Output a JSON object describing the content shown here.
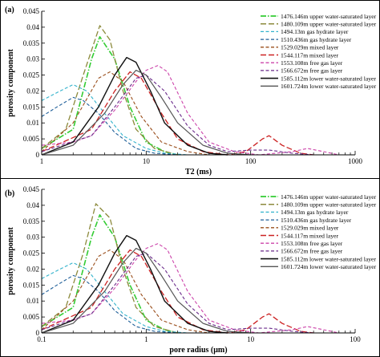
{
  "chart_data": [
    {
      "type": "line",
      "panel_tag": "(a)",
      "xlabel": "T2 (ms)",
      "ylabel": "porosity component",
      "xscale": "log",
      "xlim": [
        1,
        1000
      ],
      "ylim": [
        0,
        0.045
      ],
      "xticks": [
        "1",
        "10",
        "100",
        "1000"
      ],
      "yticks": [
        "0",
        "0.005",
        "0.01",
        "0.015",
        "0.02",
        "0.025",
        "0.03",
        "0.035",
        "0.04",
        "0.045"
      ],
      "legend_position": "top-right",
      "series": [
        {
          "name": "1476.146m upper water-saturated layer",
          "color": "#33cc33",
          "dash": "dashdot",
          "width": 1.6,
          "points": [
            [
              1,
              0.002
            ],
            [
              2,
              0.008
            ],
            [
              3,
              0.03
            ],
            [
              3.6,
              0.037
            ],
            [
              5,
              0.03
            ],
            [
              7,
              0.015
            ],
            [
              10,
              0.004
            ],
            [
              15,
              0.001
            ],
            [
              20,
              0
            ]
          ]
        },
        {
          "name": "1480.109m upper water-saturated layer",
          "color": "#8c8a3c",
          "dash": "longdash",
          "width": 1.3,
          "points": [
            [
              1,
              0.002
            ],
            [
              1.7,
              0.008
            ],
            [
              2.5,
              0.025
            ],
            [
              3.6,
              0.0405
            ],
            [
              4.5,
              0.036
            ],
            [
              6,
              0.02
            ],
            [
              8,
              0.008
            ],
            [
              12,
              0.002
            ],
            [
              20,
              0
            ]
          ]
        },
        {
          "name": "1494.13m gas hydrate layer",
          "color": "#33b3cc",
          "dash": "dashed",
          "width": 1.1,
          "points": [
            [
              1,
              0.017
            ],
            [
              1.5,
              0.02
            ],
            [
              2,
              0.022
            ],
            [
              2.7,
              0.02
            ],
            [
              4,
              0.013
            ],
            [
              6,
              0.006
            ],
            [
              10,
              0.002
            ],
            [
              15,
              0.0005
            ],
            [
              25,
              0
            ]
          ]
        },
        {
          "name": "1510.436m gas hydrate layer",
          "color": "#1f5f99",
          "dash": "dashed",
          "width": 1.1,
          "points": [
            [
              1,
              0.012
            ],
            [
              1.4,
              0.015
            ],
            [
              2,
              0.018
            ],
            [
              2.5,
              0.017
            ],
            [
              3.5,
              0.013
            ],
            [
              5,
              0.007
            ],
            [
              8,
              0.002
            ],
            [
              12,
              0.0005
            ],
            [
              20,
              0
            ]
          ]
        },
        {
          "name": "1529.029m mixed layer",
          "color": "#994d1a",
          "dash": "dashed",
          "width": 1.1,
          "points": [
            [
              1,
              0.001
            ],
            [
              2,
              0.01
            ],
            [
              3.5,
              0.024
            ],
            [
              4.5,
              0.026
            ],
            [
              6,
              0.023
            ],
            [
              9,
              0.012
            ],
            [
              14,
              0.004
            ],
            [
              25,
              0.001
            ],
            [
              40,
              0
            ]
          ]
        },
        {
          "name": "1544.117m mixed layer",
          "color": "#cc2222",
          "dash": "longdash",
          "width": 1.3,
          "points": [
            [
              1,
              0.001
            ],
            [
              3,
              0.008
            ],
            [
              5,
              0.02
            ],
            [
              7,
              0.026
            ],
            [
              9,
              0.024
            ],
            [
              14,
              0.013
            ],
            [
              20,
              0.005
            ],
            [
              35,
              0.001
            ],
            [
              60,
              0
            ],
            [
              90,
              0.001
            ],
            [
              130,
              0.005
            ],
            [
              150,
              0.006
            ],
            [
              200,
              0.003
            ],
            [
              300,
              0.0005
            ],
            [
              400,
              0
            ]
          ]
        },
        {
          "name": "1553.108m free gas layer",
          "color": "#cc44aa",
          "dash": "dashed",
          "width": 1.1,
          "points": [
            [
              1,
              0.003
            ],
            [
              2,
              0.004
            ],
            [
              3,
              0.006
            ],
            [
              5,
              0.014
            ],
            [
              8,
              0.023
            ],
            [
              10,
              0.0265
            ],
            [
              13,
              0.028
            ],
            [
              16,
              0.026
            ],
            [
              25,
              0.013
            ],
            [
              40,
              0.004
            ],
            [
              70,
              0.001
            ],
            [
              120,
              0
            ],
            [
              250,
              0.001
            ],
            [
              350,
              0.002
            ],
            [
              500,
              0.001
            ],
            [
              700,
              0
            ]
          ]
        },
        {
          "name": "1566.672m free gas layer",
          "color": "#6a2a8a",
          "dash": "dashed",
          "width": 1.1,
          "points": [
            [
              1,
              0.001
            ],
            [
              3,
              0.006
            ],
            [
              5,
              0.015
            ],
            [
              8,
              0.024
            ],
            [
              10,
              0.025
            ],
            [
              15,
              0.02
            ],
            [
              25,
              0.009
            ],
            [
              40,
              0.003
            ],
            [
              60,
              0.001
            ],
            [
              100,
              0.0015
            ],
            [
              150,
              0.0015
            ],
            [
              250,
              0.0005
            ],
            [
              400,
              0
            ]
          ]
        },
        {
          "name": "1585.112m lower water-saturated layer",
          "color": "#111111",
          "dash": "solid",
          "width": 1.4,
          "points": [
            [
              1,
              0
            ],
            [
              2,
              0.004
            ],
            [
              3.5,
              0.015
            ],
            [
              5,
              0.025
            ],
            [
              6.5,
              0.0305
            ],
            [
              8,
              0.029
            ],
            [
              11,
              0.02
            ],
            [
              15,
              0.01
            ],
            [
              25,
              0.003
            ],
            [
              40,
              0.0005
            ],
            [
              60,
              0
            ]
          ]
        },
        {
          "name": "1601.724m lower water-saturated layer",
          "color": "#555555",
          "dash": "solid",
          "width": 1.2,
          "points": [
            [
              1,
              0
            ],
            [
              2,
              0.003
            ],
            [
              4,
              0.013
            ],
            [
              6,
              0.022
            ],
            [
              8,
              0.0265
            ],
            [
              10,
              0.025
            ],
            [
              14,
              0.018
            ],
            [
              20,
              0.01
            ],
            [
              35,
              0.003
            ],
            [
              60,
              0.0005
            ],
            [
              100,
              0
            ]
          ]
        }
      ]
    },
    {
      "type": "line",
      "panel_tag": "(b)",
      "xlabel": "pore radius (μm)",
      "ylabel": "porosity component",
      "xscale": "log",
      "xlim": [
        0.1,
        100
      ],
      "ylim": [
        0,
        0.045
      ],
      "xticks": [
        "0.1",
        "1",
        "10",
        "100"
      ],
      "yticks": [
        "0",
        "0.005",
        "0.01",
        "0.015",
        "0.02",
        "0.025",
        "0.03",
        "0.035",
        "0.04",
        "0.045"
      ],
      "legend_position": "top-right",
      "series": [
        {
          "name": "1476.146m upper water-saturated layer",
          "color": "#33cc33",
          "dash": "dashdot",
          "width": 1.6,
          "points": [
            [
              0.1,
              0.002
            ],
            [
              0.2,
              0.008
            ],
            [
              0.3,
              0.03
            ],
            [
              0.36,
              0.037
            ],
            [
              0.5,
              0.03
            ],
            [
              0.7,
              0.015
            ],
            [
              1,
              0.004
            ],
            [
              1.5,
              0.001
            ],
            [
              2,
              0
            ]
          ]
        },
        {
          "name": "1480.109m upper water-saturated layer",
          "color": "#8c8a3c",
          "dash": "longdash",
          "width": 1.3,
          "points": [
            [
              0.1,
              0.002
            ],
            [
              0.17,
              0.008
            ],
            [
              0.25,
              0.025
            ],
            [
              0.33,
              0.0405
            ],
            [
              0.45,
              0.036
            ],
            [
              0.6,
              0.02
            ],
            [
              0.8,
              0.008
            ],
            [
              1.2,
              0.002
            ],
            [
              2,
              0
            ]
          ]
        },
        {
          "name": "1494.13m gas hydrate layer",
          "color": "#33b3cc",
          "dash": "dashed",
          "width": 1.1,
          "points": [
            [
              0.1,
              0.017
            ],
            [
              0.15,
              0.02
            ],
            [
              0.2,
              0.022
            ],
            [
              0.27,
              0.02
            ],
            [
              0.4,
              0.013
            ],
            [
              0.6,
              0.006
            ],
            [
              1,
              0.002
            ],
            [
              1.5,
              0.0005
            ],
            [
              2.5,
              0
            ]
          ]
        },
        {
          "name": "1510.436m gas hydrate layer",
          "color": "#1f5f99",
          "dash": "dashed",
          "width": 1.1,
          "points": [
            [
              0.1,
              0.012
            ],
            [
              0.14,
              0.015
            ],
            [
              0.2,
              0.018
            ],
            [
              0.25,
              0.017
            ],
            [
              0.35,
              0.013
            ],
            [
              0.5,
              0.007
            ],
            [
              0.8,
              0.002
            ],
            [
              1.2,
              0.0005
            ],
            [
              2,
              0
            ]
          ]
        },
        {
          "name": "1529.029m mixed layer",
          "color": "#994d1a",
          "dash": "dashed",
          "width": 1.1,
          "points": [
            [
              0.1,
              0.001
            ],
            [
              0.2,
              0.01
            ],
            [
              0.35,
              0.024
            ],
            [
              0.45,
              0.026
            ],
            [
              0.6,
              0.023
            ],
            [
              0.9,
              0.012
            ],
            [
              1.4,
              0.004
            ],
            [
              2.5,
              0.001
            ],
            [
              4,
              0
            ]
          ]
        },
        {
          "name": "1544.117m mixed layer",
          "color": "#cc2222",
          "dash": "longdash",
          "width": 1.3,
          "points": [
            [
              0.1,
              0.001
            ],
            [
              0.3,
              0.008
            ],
            [
              0.5,
              0.02
            ],
            [
              0.7,
              0.026
            ],
            [
              0.9,
              0.024
            ],
            [
              1.4,
              0.013
            ],
            [
              2,
              0.005
            ],
            [
              3.5,
              0.001
            ],
            [
              6,
              0
            ],
            [
              9,
              0.001
            ],
            [
              13,
              0.005
            ],
            [
              15,
              0.006
            ],
            [
              20,
              0.003
            ],
            [
              30,
              0.0005
            ],
            [
              40,
              0
            ]
          ]
        },
        {
          "name": "1553.108m free gas layer",
          "color": "#cc44aa",
          "dash": "dashed",
          "width": 1.1,
          "points": [
            [
              0.1,
              0.003
            ],
            [
              0.2,
              0.004
            ],
            [
              0.3,
              0.006
            ],
            [
              0.5,
              0.014
            ],
            [
              0.8,
              0.023
            ],
            [
              1,
              0.0265
            ],
            [
              1.3,
              0.028
            ],
            [
              1.6,
              0.026
            ],
            [
              2.5,
              0.013
            ],
            [
              4,
              0.004
            ],
            [
              7,
              0.001
            ],
            [
              12,
              0
            ],
            [
              25,
              0.001
            ],
            [
              35,
              0.002
            ],
            [
              50,
              0.001
            ],
            [
              70,
              0
            ]
          ]
        },
        {
          "name": "1566.672m free gas layer",
          "color": "#6a2a8a",
          "dash": "dashed",
          "width": 1.1,
          "points": [
            [
              0.1,
              0.001
            ],
            [
              0.3,
              0.006
            ],
            [
              0.5,
              0.015
            ],
            [
              0.8,
              0.024
            ],
            [
              1,
              0.025
            ],
            [
              1.5,
              0.02
            ],
            [
              2.5,
              0.009
            ],
            [
              4,
              0.003
            ],
            [
              6,
              0.001
            ],
            [
              10,
              0.0015
            ],
            [
              15,
              0.0015
            ],
            [
              25,
              0.0005
            ],
            [
              40,
              0
            ]
          ]
        },
        {
          "name": "1585.112m lower water-saturated layer",
          "color": "#111111",
          "dash": "solid",
          "width": 1.4,
          "points": [
            [
              0.1,
              0
            ],
            [
              0.2,
              0.004
            ],
            [
              0.35,
              0.015
            ],
            [
              0.5,
              0.025
            ],
            [
              0.65,
              0.0305
            ],
            [
              0.8,
              0.029
            ],
            [
              1.1,
              0.02
            ],
            [
              1.5,
              0.01
            ],
            [
              2.5,
              0.003
            ],
            [
              4,
              0.0005
            ],
            [
              6,
              0
            ]
          ]
        },
        {
          "name": "1601.724m lower water-saturated layer",
          "color": "#555555",
          "dash": "solid",
          "width": 1.2,
          "points": [
            [
              0.1,
              0
            ],
            [
              0.2,
              0.003
            ],
            [
              0.4,
              0.013
            ],
            [
              0.6,
              0.022
            ],
            [
              0.8,
              0.0265
            ],
            [
              1,
              0.025
            ],
            [
              1.4,
              0.018
            ],
            [
              2,
              0.01
            ],
            [
              3.5,
              0.003
            ],
            [
              6,
              0.0005
            ],
            [
              10,
              0
            ]
          ]
        }
      ]
    }
  ]
}
